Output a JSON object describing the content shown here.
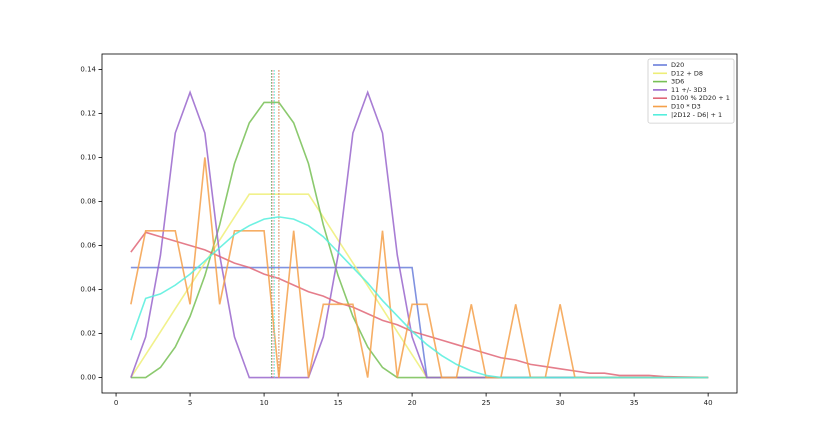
{
  "chart_data": {
    "type": "line",
    "x": [
      1,
      2,
      3,
      4,
      5,
      6,
      7,
      8,
      9,
      10,
      11,
      12,
      13,
      14,
      15,
      16,
      17,
      18,
      19,
      20,
      21,
      22,
      23,
      24,
      25,
      26,
      27,
      28,
      29,
      30,
      31,
      32,
      33,
      34,
      35,
      36,
      37,
      38,
      39,
      40
    ],
    "xlim": [
      -0.95,
      41.95
    ],
    "xticks": [
      0,
      5,
      10,
      15,
      20,
      25,
      30,
      35,
      40
    ],
    "ylim": [
      -0.007,
      0.147
    ],
    "yticks": [
      {
        "value": 0,
        "label": "0.00"
      },
      {
        "value": 0.02,
        "label": "0.02"
      },
      {
        "value": 0.04,
        "label": "0.04"
      },
      {
        "value": 0.06,
        "label": "0.06"
      },
      {
        "value": 0.08,
        "label": "0.08"
      },
      {
        "value": 0.1,
        "label": "0.10"
      },
      {
        "value": 0.12,
        "label": "0.12"
      },
      {
        "value": 0.14,
        "label": "0.14"
      }
    ],
    "legend": "upper right",
    "mean_line_range": [
      0,
      0.14
    ],
    "series": [
      {
        "name": "D20",
        "color": "#6a7fdb",
        "mean": 10.5,
        "values": [
          0.05,
          0.05,
          0.05,
          0.05,
          0.05,
          0.05,
          0.05,
          0.05,
          0.05,
          0.05,
          0.05,
          0.05,
          0.05,
          0.05,
          0.05,
          0.05,
          0.05,
          0.05,
          0.05,
          0.05,
          0,
          0,
          0,
          0,
          0,
          0,
          0,
          0,
          0,
          0,
          0,
          0,
          0,
          0,
          0,
          0,
          0,
          0,
          0,
          0
        ]
      },
      {
        "name": "D12 + D8",
        "color": "#eeee77",
        "mean": 11,
        "values": [
          0,
          0.0104,
          0.0208,
          0.0313,
          0.0417,
          0.0521,
          0.0625,
          0.0729,
          0.0833,
          0.0833,
          0.0833,
          0.0833,
          0.0833,
          0.0729,
          0.0625,
          0.0521,
          0.0417,
          0.0313,
          0.0208,
          0.0104,
          0,
          0,
          0,
          0,
          0,
          0,
          0,
          0,
          0,
          0,
          0,
          0,
          0,
          0,
          0,
          0,
          0,
          0,
          0,
          0
        ]
      },
      {
        "name": "3D6",
        "color": "#77c055",
        "mean": 10.5,
        "values": [
          0,
          0,
          0.0046,
          0.0139,
          0.0278,
          0.0463,
          0.0694,
          0.0972,
          0.1157,
          0.125,
          0.125,
          0.1157,
          0.0972,
          0.0694,
          0.0463,
          0.0278,
          0.0139,
          0.0046,
          0,
          0,
          0,
          0,
          0,
          0,
          0,
          0,
          0,
          0,
          0,
          0,
          0,
          0,
          0,
          0,
          0,
          0,
          0,
          0,
          0,
          0
        ]
      },
      {
        "name": "11 +/- 3D3",
        "color": "#9966cc",
        "mean": 11,
        "values": [
          0,
          0.0185,
          0.0556,
          0.1111,
          0.1296,
          0.1111,
          0.0556,
          0.0185,
          0,
          0,
          0,
          0,
          0,
          0.0185,
          0.0556,
          0.1111,
          0.1296,
          0.1111,
          0.0556,
          0.0185,
          0,
          0,
          0,
          0,
          0,
          0,
          0,
          0,
          0,
          0,
          0,
          0,
          0,
          0,
          0,
          0,
          0,
          0,
          0,
          0
        ]
      },
      {
        "name": "D100 % 2D20 + 1",
        "color": "#e06677",
        "mean": 10.6,
        "values": [
          0.057,
          0.066,
          0.064,
          0.062,
          0.06,
          0.058,
          0.055,
          0.052,
          0.05,
          0.047,
          0.045,
          0.042,
          0.039,
          0.037,
          0.034,
          0.032,
          0.029,
          0.026,
          0.024,
          0.021,
          0.019,
          0.017,
          0.015,
          0.013,
          0.011,
          0.009,
          0.008,
          0.006,
          0.005,
          0.004,
          0.003,
          0.002,
          0.002,
          0.001,
          0.001,
          0.001,
          0.0005,
          0.0003,
          0.0002,
          0.0001
        ]
      },
      {
        "name": "D10 * D3",
        "color": "#f5a04a",
        "mean": 11,
        "values": [
          0.0333,
          0.0667,
          0.0667,
          0.0667,
          0.0333,
          0.1,
          0.0333,
          0.0667,
          0.0667,
          0.0667,
          0,
          0.0667,
          0,
          0.0333,
          0.0333,
          0.0333,
          0,
          0.0667,
          0,
          0.0333,
          0.0333,
          0,
          0,
          0.0333,
          0,
          0,
          0.0333,
          0,
          0,
          0.0333,
          0,
          0,
          0,
          0,
          0,
          0,
          0,
          0,
          0,
          0
        ]
      },
      {
        "name": "|2D12 - D6| + 1",
        "color": "#55eedd",
        "mean": 10.7,
        "values": [
          0.017,
          0.036,
          0.038,
          0.042,
          0.047,
          0.053,
          0.059,
          0.065,
          0.069,
          0.072,
          0.073,
          0.072,
          0.069,
          0.064,
          0.057,
          0.05,
          0.043,
          0.035,
          0.028,
          0.021,
          0.015,
          0.01,
          0.006,
          0.003,
          0.001,
          0,
          0,
          0,
          0,
          0,
          0,
          0,
          0,
          0,
          0,
          0,
          0,
          0,
          0,
          0
        ]
      }
    ]
  }
}
